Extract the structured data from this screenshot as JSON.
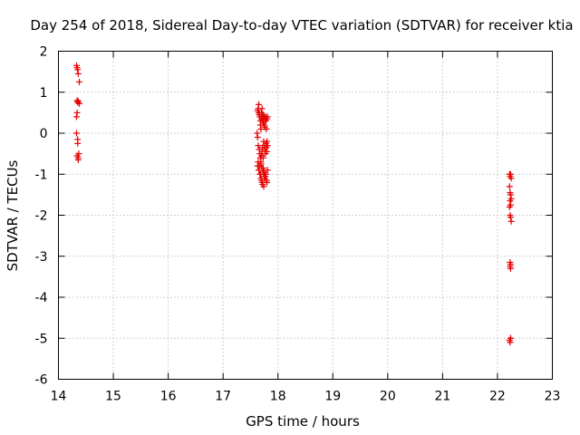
{
  "chart_data": {
    "type": "scatter",
    "title": "Day 254 of 2018, Sidereal Day-to-day VTEC variation (SDTVAR) for receiver ktia",
    "xlabel": "GPS time / hours",
    "ylabel": "SDTVAR / TECUs",
    "xlim": [
      14,
      23
    ],
    "ylim": [
      -6,
      2
    ],
    "xticks": [
      "14",
      "15",
      "16",
      "17",
      "18",
      "19",
      "20",
      "21",
      "22",
      "23"
    ],
    "yticks": [
      "2",
      "1",
      "0",
      "-1",
      "-2",
      "-3",
      "-4",
      "-5",
      "-6"
    ],
    "grid": true,
    "marker": "+",
    "color": "#e60000",
    "series": [
      {
        "name": "SDTVAR",
        "x": [
          14.33,
          14.34,
          14.35,
          14.36,
          14.38,
          14.34,
          14.35,
          14.36,
          14.38,
          14.33,
          14.34,
          14.33,
          14.35,
          14.35,
          14.34,
          14.36,
          14.37,
          14.36,
          17.63,
          17.64,
          17.65,
          17.65,
          17.66,
          17.67,
          17.68,
          17.68,
          17.69,
          17.7,
          17.7,
          17.71,
          17.72,
          17.72,
          17.73,
          17.73,
          17.74,
          17.75,
          17.75,
          17.76,
          17.77,
          17.78,
          17.78,
          17.79,
          17.8,
          17.8,
          17.81,
          17.62,
          17.63,
          17.64,
          17.66,
          17.67,
          17.68,
          17.69,
          17.7,
          17.71,
          17.72,
          17.73,
          17.74,
          17.75,
          17.76,
          17.77,
          17.78,
          17.79,
          17.8,
          17.81,
          17.63,
          17.65,
          17.67,
          17.69,
          17.71,
          17.73,
          17.75,
          17.77,
          17.79,
          17.81,
          17.64,
          17.66,
          17.68,
          17.7,
          17.72,
          17.74,
          17.76,
          17.78,
          17.8,
          17.69,
          17.71,
          17.73,
          17.75,
          22.22,
          22.23,
          22.24,
          22.25,
          22.22,
          22.23,
          22.24,
          22.25,
          22.23,
          22.24,
          22.22,
          22.23,
          22.24,
          22.25,
          22.23,
          22.24,
          22.23,
          22.24,
          22.24,
          22.22,
          22.23,
          22.24
        ],
        "y": [
          1.65,
          1.6,
          1.55,
          1.45,
          1.25,
          0.8,
          0.75,
          0.78,
          0.72,
          0.4,
          0.5,
          0.0,
          -0.15,
          -0.25,
          -0.55,
          -0.6,
          -0.5,
          -0.65,
          0.55,
          0.6,
          0.7,
          0.5,
          0.45,
          0.4,
          0.3,
          0.2,
          0.1,
          0.5,
          0.35,
          0.6,
          0.4,
          0.3,
          0.45,
          0.25,
          0.35,
          0.2,
          0.4,
          0.15,
          0.35,
          0.3,
          0.4,
          0.1,
          0.35,
          -0.2,
          0.4,
          0.0,
          -0.1,
          -0.3,
          -0.4,
          -0.5,
          -0.6,
          -0.7,
          -0.55,
          -0.45,
          -0.35,
          -0.6,
          -0.2,
          -0.3,
          -0.4,
          -0.5,
          -0.25,
          -0.35,
          -0.45,
          -0.3,
          -0.8,
          -0.9,
          -1.0,
          -1.1,
          -1.2,
          -0.85,
          -0.95,
          -1.05,
          -1.15,
          -0.9,
          -0.7,
          -0.8,
          -1.0,
          -1.15,
          -1.25,
          -1.3,
          -1.1,
          -1.0,
          -1.2,
          -0.75,
          -0.85,
          -0.95,
          -1.05,
          -1.0,
          -1.05,
          -1.0,
          -1.1,
          -1.3,
          -1.45,
          -1.5,
          -1.6,
          -1.65,
          -1.75,
          -1.8,
          -2.0,
          -2.05,
          -2.15,
          -3.15,
          -3.2,
          -3.25,
          -3.3,
          -5.0,
          -5.05,
          -5.1,
          -5.0
        ]
      }
    ]
  }
}
